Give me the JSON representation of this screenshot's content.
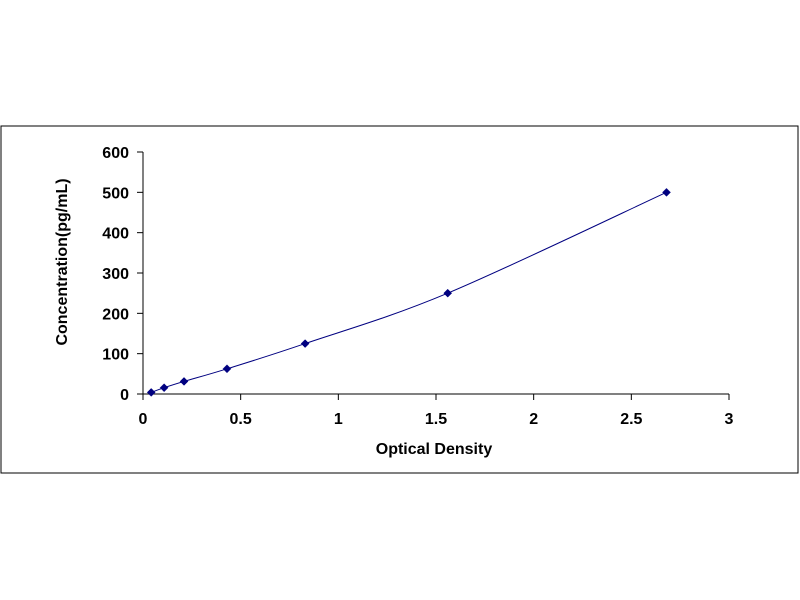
{
  "chart_data": {
    "type": "scatter",
    "title": "",
    "xlabel": "Optical Density",
    "ylabel": "Concentration(pg/mL)",
    "xlim": [
      0,
      3
    ],
    "ylim": [
      0,
      600
    ],
    "x_ticks": [
      0,
      0.5,
      1,
      1.5,
      2,
      2.5,
      3
    ],
    "x_tick_labels": [
      "0",
      "0.5",
      "1",
      "1.5",
      "2",
      "2.5",
      "3"
    ],
    "y_ticks": [
      0,
      100,
      200,
      300,
      400,
      500,
      600
    ],
    "y_tick_labels": [
      "0",
      "100",
      "200",
      "300",
      "400",
      "500",
      "600"
    ],
    "grid": false,
    "legend": "none",
    "fit_curve": true,
    "colors": {
      "marker": "#000080",
      "line": "#000080",
      "axis": "#000000",
      "frame": "#000000"
    },
    "series": [
      {
        "x": [
          0.042,
          0.108,
          0.21,
          0.43,
          0.83,
          1.56,
          2.68
        ],
        "y": [
          3.9,
          15.6,
          31.2,
          62.5,
          125,
          250,
          500
        ]
      }
    ]
  }
}
